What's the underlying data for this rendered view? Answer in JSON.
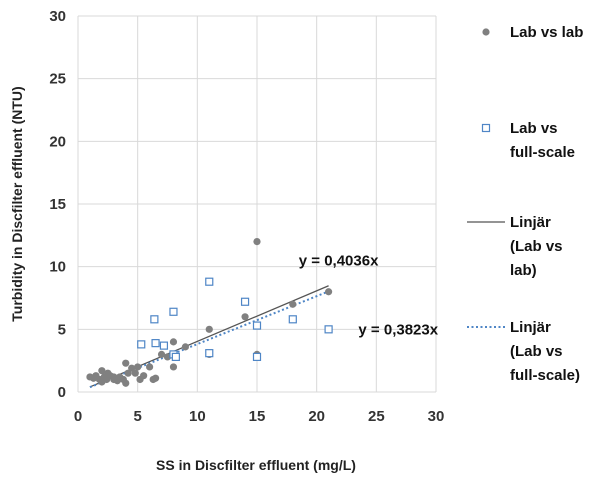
{
  "chart_data": {
    "type": "scatter",
    "xlabel": "SS in Discfilter effluent (mg/L)",
    "ylabel": "Turbidity in Discfilter effluent (NTU)",
    "xlim": [
      0,
      30
    ],
    "ylim": [
      0,
      30
    ],
    "xticks": [
      "0",
      "5",
      "10",
      "15",
      "20",
      "25",
      "30"
    ],
    "yticks": [
      "0",
      "5",
      "10",
      "15",
      "20",
      "25",
      "30"
    ],
    "grid": true,
    "legend_position": "right",
    "series": [
      {
        "name": "Lab vs lab",
        "marker": "circle",
        "color": "#808080",
        "points": [
          [
            1.0,
            1.2
          ],
          [
            1.3,
            1.1
          ],
          [
            1.5,
            1.3
          ],
          [
            1.8,
            1.0
          ],
          [
            2.0,
            0.8
          ],
          [
            2.0,
            1.7
          ],
          [
            2.2,
            1.2
          ],
          [
            2.4,
            1.0
          ],
          [
            2.5,
            1.5
          ],
          [
            2.7,
            1.3
          ],
          [
            3.0,
            1.0
          ],
          [
            3.0,
            1.2
          ],
          [
            3.3,
            0.9
          ],
          [
            3.5,
            1.2
          ],
          [
            3.8,
            1.0
          ],
          [
            4.0,
            0.7
          ],
          [
            4.0,
            2.3
          ],
          [
            4.2,
            1.5
          ],
          [
            4.5,
            1.9
          ],
          [
            4.8,
            1.5
          ],
          [
            5.0,
            2.0
          ],
          [
            5.2,
            1.0
          ],
          [
            5.5,
            1.3
          ],
          [
            6.0,
            2.0
          ],
          [
            6.3,
            1.0
          ],
          [
            6.5,
            1.1
          ],
          [
            7.0,
            3.0
          ],
          [
            7.5,
            2.8
          ],
          [
            8.0,
            4.0
          ],
          [
            8.0,
            2.0
          ],
          [
            9.0,
            3.6
          ],
          [
            11.0,
            3.0
          ],
          [
            11.0,
            5.0
          ],
          [
            14.0,
            6.0
          ],
          [
            15.0,
            12.0
          ],
          [
            15.0,
            3.0
          ],
          [
            18.0,
            7.0
          ],
          [
            21.0,
            8.0
          ]
        ]
      },
      {
        "name": "Lab vs full-scale",
        "marker": "square-open",
        "color": "#4f86c6",
        "points": [
          [
            5.3,
            3.8
          ],
          [
            6.4,
            5.8
          ],
          [
            6.5,
            3.9
          ],
          [
            7.2,
            3.7
          ],
          [
            8.0,
            6.4
          ],
          [
            8.0,
            3.0
          ],
          [
            8.2,
            2.8
          ],
          [
            11.0,
            8.8
          ],
          [
            11.0,
            3.1
          ],
          [
            14.0,
            7.2
          ],
          [
            15.0,
            5.3
          ],
          [
            15.0,
            2.8
          ],
          [
            18.0,
            5.8
          ],
          [
            21.0,
            5.0
          ]
        ]
      }
    ],
    "trendlines": [
      {
        "name": "Linjär (Lab vs lab)",
        "slope": 0.4036,
        "x_range": [
          1.0,
          21.0
        ],
        "style": "solid",
        "color": "#555555",
        "equation": "y = 0,4036x",
        "equation_at": [
          18.5,
          10.5
        ]
      },
      {
        "name": "Linjär (Lab vs full-scale)",
        "slope": 0.3823,
        "x_range": [
          1.0,
          21.0
        ],
        "style": "dotted",
        "color": "#4f86c6",
        "equation": "y = 0,3823x",
        "equation_at": [
          23.5,
          5.0
        ]
      }
    ],
    "legend": [
      {
        "kind": "circle",
        "color": "#808080",
        "lines": [
          "Lab vs lab"
        ]
      },
      {
        "kind": "square-open",
        "color": "#4f86c6",
        "lines": [
          "Lab vs",
          "full-scale"
        ]
      },
      {
        "kind": "solid-line",
        "color": "#555555",
        "lines": [
          "Linjär",
          "(Lab vs",
          "lab)"
        ]
      },
      {
        "kind": "dotted-line",
        "color": "#4f86c6",
        "lines": [
          "Linjär",
          "(Lab vs",
          "full-scale)"
        ]
      }
    ]
  }
}
